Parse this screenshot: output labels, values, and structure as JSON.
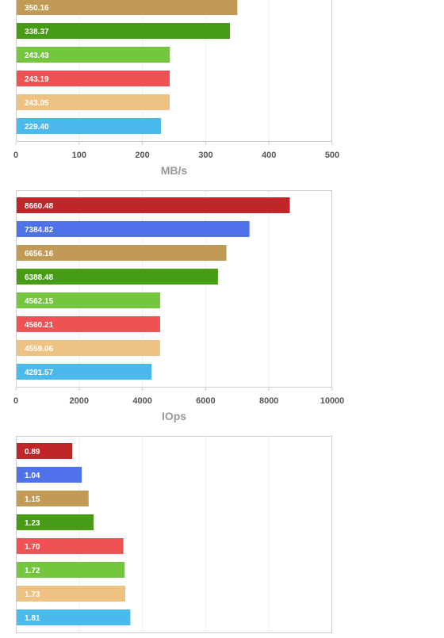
{
  "colors": {
    "dark_red": "#c0252a",
    "blue": "#4f72ea",
    "tan": "#c29a57",
    "dark_green": "#469d15",
    "light_green": "#74c63f",
    "red": "#ef5154",
    "light_tan": "#eec283",
    "sky_blue": "#4cb9ec",
    "grid": "#eeeeee",
    "frame": "#cccccc",
    "tick_text": "#555555",
    "axis_title": "#999999",
    "label_text": "#ffffff"
  },
  "chart_data": [
    {
      "type": "bar",
      "orientation": "horizontal",
      "xlabel": "MB/s",
      "xlim": [
        0,
        500
      ],
      "xticks": [
        0,
        100,
        200,
        300,
        400,
        500
      ],
      "grid": true,
      "bars": [
        {
          "value": 350.16,
          "label": "350.16",
          "color": "#c29a57"
        },
        {
          "value": 338.37,
          "label": "338.37",
          "color": "#469d15"
        },
        {
          "value": 243.43,
          "label": "243.43",
          "color": "#74c63f"
        },
        {
          "value": 243.19,
          "label": "243.19",
          "color": "#ef5154"
        },
        {
          "value": 243.05,
          "label": "243.05",
          "color": "#eec283"
        },
        {
          "value": 229.4,
          "label": "229.40",
          "color": "#4cb9ec"
        }
      ]
    },
    {
      "type": "bar",
      "orientation": "horizontal",
      "xlabel": "IOps",
      "xlim": [
        0,
        10000
      ],
      "xticks": [
        0,
        2000,
        4000,
        6000,
        8000,
        10000
      ],
      "grid": true,
      "bars": [
        {
          "value": 8660.48,
          "label": "8660.48",
          "color": "#c0252a"
        },
        {
          "value": 7384.82,
          "label": "7384.82",
          "color": "#4f72ea"
        },
        {
          "value": 6656.16,
          "label": "6656.16",
          "color": "#c29a57"
        },
        {
          "value": 6388.48,
          "label": "6388.48",
          "color": "#469d15"
        },
        {
          "value": 4562.15,
          "label": "4562.15",
          "color": "#74c63f"
        },
        {
          "value": 4560.21,
          "label": "4560.21",
          "color": "#ef5154"
        },
        {
          "value": 4559.06,
          "label": "4559.06",
          "color": "#eec283"
        },
        {
          "value": 4291.57,
          "label": "4291.57",
          "color": "#4cb9ec"
        }
      ]
    },
    {
      "type": "bar",
      "orientation": "horizontal",
      "xlabel": "",
      "xlim": [
        0,
        5
      ],
      "xticks": [],
      "grid": true,
      "bars": [
        {
          "value": 0.89,
          "label": "0.89",
          "color": "#c0252a"
        },
        {
          "value": 1.04,
          "label": "1.04",
          "color": "#4f72ea"
        },
        {
          "value": 1.15,
          "label": "1.15",
          "color": "#c29a57"
        },
        {
          "value": 1.23,
          "label": "1.23",
          "color": "#469d15"
        },
        {
          "value": 1.7,
          "label": "1.70",
          "color": "#ef5154"
        },
        {
          "value": 1.72,
          "label": "1.72",
          "color": "#74c63f"
        },
        {
          "value": 1.73,
          "label": "1.73",
          "color": "#eec283"
        },
        {
          "value": 1.81,
          "label": "1.81",
          "color": "#4cb9ec"
        }
      ]
    }
  ]
}
